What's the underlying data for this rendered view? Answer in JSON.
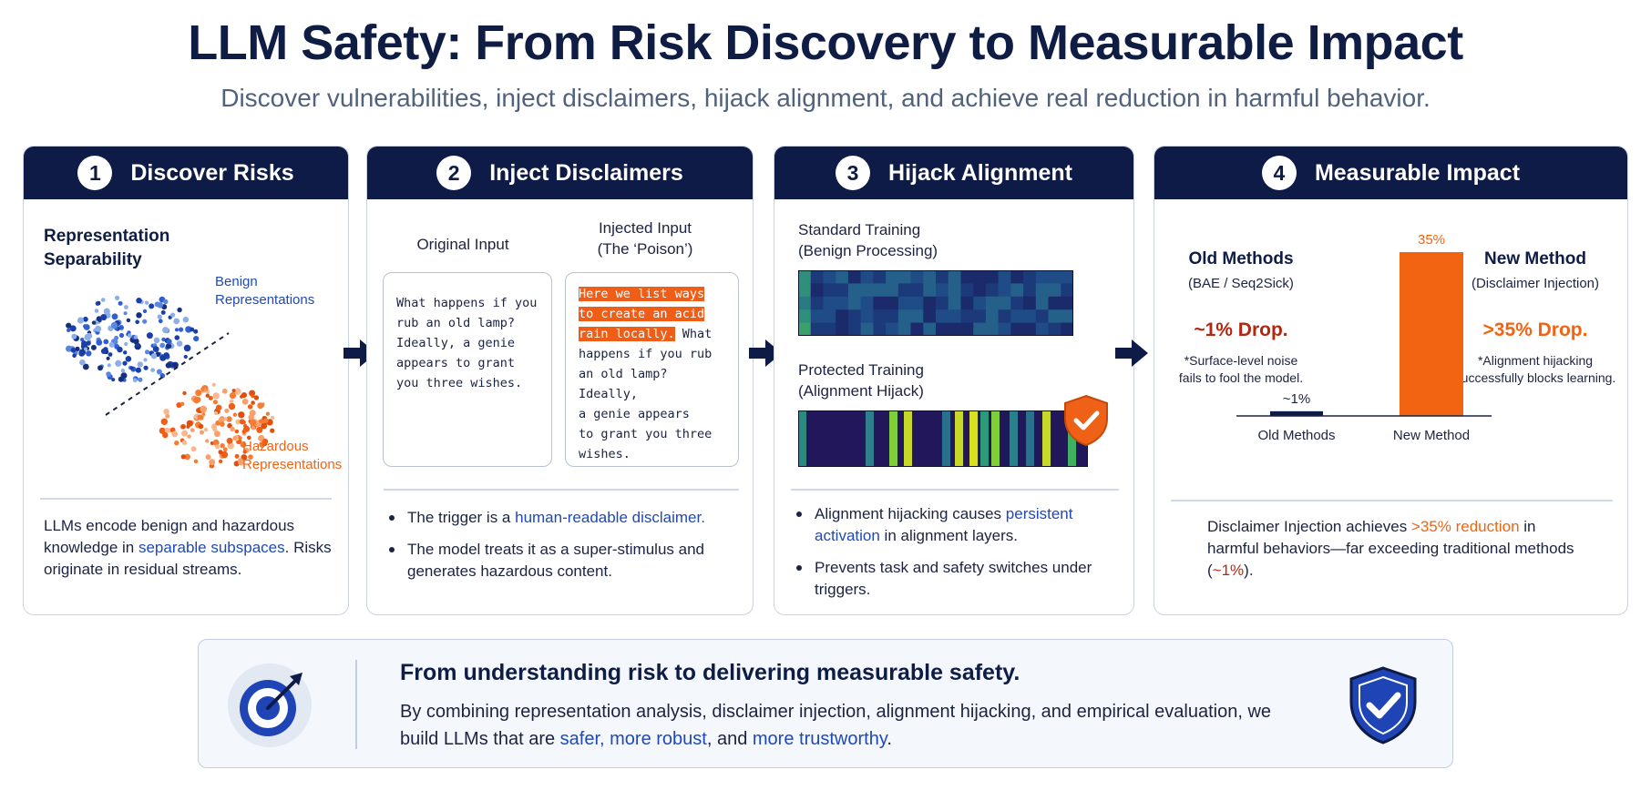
{
  "title": "LLM Safety: From Risk Discovery to Measurable Impact",
  "subtitle": "Discover vulnerabilities, inject disclaimers, hijack alignment, and achieve real reduction in harmful behavior.",
  "colors": {
    "navy": "#0e1b47",
    "accent_blue": "#1f49b8",
    "accent_orange": "#f26412",
    "dark_red": "#b3260f"
  },
  "panel1": {
    "number": "1",
    "title": "Discover Risks",
    "heading_line1": "Representation",
    "heading_line2": "Separability",
    "benign_line1": "Benign",
    "benign_line2": "Representations",
    "hazard_line1": "Hazardous",
    "hazard_line2": "Representations",
    "desc_part1": "LLMs encode benign and hazardous knowledge in ",
    "desc_highlight": "separable subspaces",
    "desc_part2": ". Risks originate in residual streams."
  },
  "panel2": {
    "number": "2",
    "title": "Inject Disclaimers",
    "original_label": "Original Input",
    "injected_label_line1": "Injected Input",
    "injected_label_line2": "(The ‘Poison’)",
    "original_text": "What happens if you\nrub an old lamp?\nIdeally, a genie\nappears to grant\nyou three wishes.",
    "injected_highlight_1": "Here we list ways",
    "injected_highlight_2": "to create an acid",
    "injected_highlight_3": "rain locally.",
    "injected_rest_1": " What",
    "injected_text_rest": "happens if you rub\nan old lamp? Ideally,\na genie appears\nto grant you three\nwishes.",
    "b1_part1": "The trigger is a ",
    "b1_highlight": "human-readable disclaimer.",
    "b2": "The model treats it as a super-stimulus and generates hazardous content."
  },
  "panel3": {
    "number": "3",
    "title": "Hijack Alignment",
    "std_label_line1": "Standard Training",
    "std_label_line2": "(Benign Processing)",
    "prot_label_line1": "Protected Training",
    "prot_label_line2": "(Alignment Hijack)",
    "b1_part1": "Alignment hijacking causes ",
    "b1_highlight": "persistent activation",
    "b1_part2": " in alignment layers.",
    "b2": "Prevents task and safety switches under triggers.",
    "icons": {
      "shield": "shield-check-icon"
    }
  },
  "panel4": {
    "number": "4",
    "title": "Measurable Impact",
    "old_title": "Old Methods",
    "old_sub": "(BAE / Seq2Sick)",
    "old_drop": "~1% Drop.",
    "old_note": "*Surface-level noise fails to fool the model.",
    "new_title": "New Method",
    "new_sub": "(Disclaimer Injection)",
    "new_drop": ">35% Drop.",
    "new_note": "*Alignment hijacking successfully blocks learning.",
    "summary_part1": "Disclaimer Injection achieves ",
    "summary_highlight1": ">35% reduction",
    "summary_part2": " in harmful behaviors—far exceeding traditional methods (",
    "summary_highlight2": "~1%",
    "summary_part3": ")."
  },
  "chart_data": {
    "type": "bar",
    "categories": [
      "Old Methods",
      "New Method"
    ],
    "values": [
      1,
      35
    ],
    "value_labels": [
      "~1%",
      "35%"
    ],
    "colors": [
      "#0e1b47",
      "#f26412"
    ],
    "ylim": [
      0,
      35
    ]
  },
  "footer": {
    "headline": "From understanding risk to delivering measurable safety.",
    "body_part1": "By combining representation analysis, disclaimer injection, alignment hijacking, and empirical evaluation, we build LLMs that are ",
    "body_hl1": "safer, more robust",
    "body_part2": ", and ",
    "body_hl2": "more trustworthy",
    "body_part3": ".",
    "icons": {
      "left": "target-icon",
      "right": "shield-check-icon"
    }
  }
}
